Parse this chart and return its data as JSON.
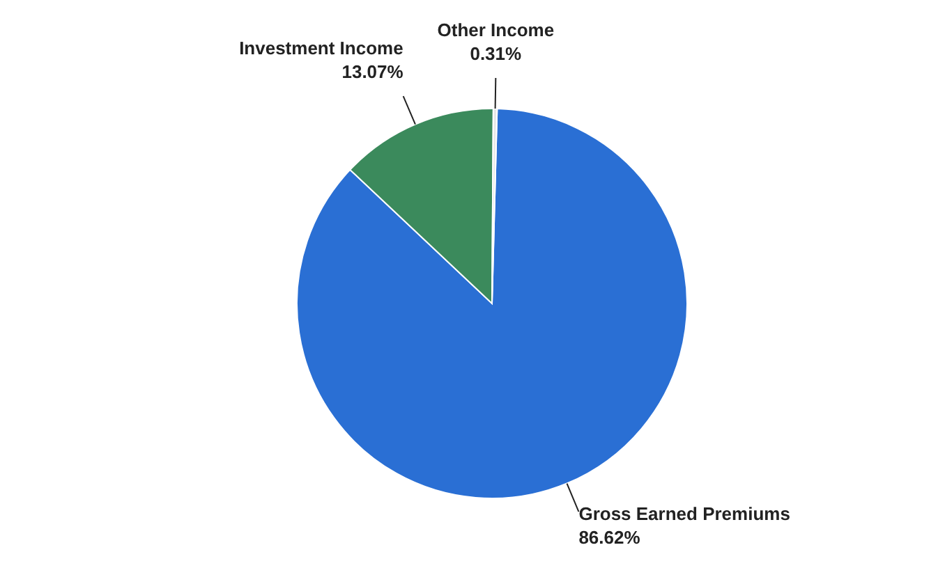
{
  "chart_data": {
    "type": "pie",
    "categories": [
      "Gross Earned Premiums",
      "Investment Income",
      "Other Income"
    ],
    "values": [
      86.62,
      13.07,
      0.31
    ],
    "value_labels": [
      "86.62%",
      "13.07%",
      "0.31%"
    ],
    "colors": [
      "#2a6fd4",
      "#3b8a5c",
      "#e6e6e6"
    ]
  }
}
